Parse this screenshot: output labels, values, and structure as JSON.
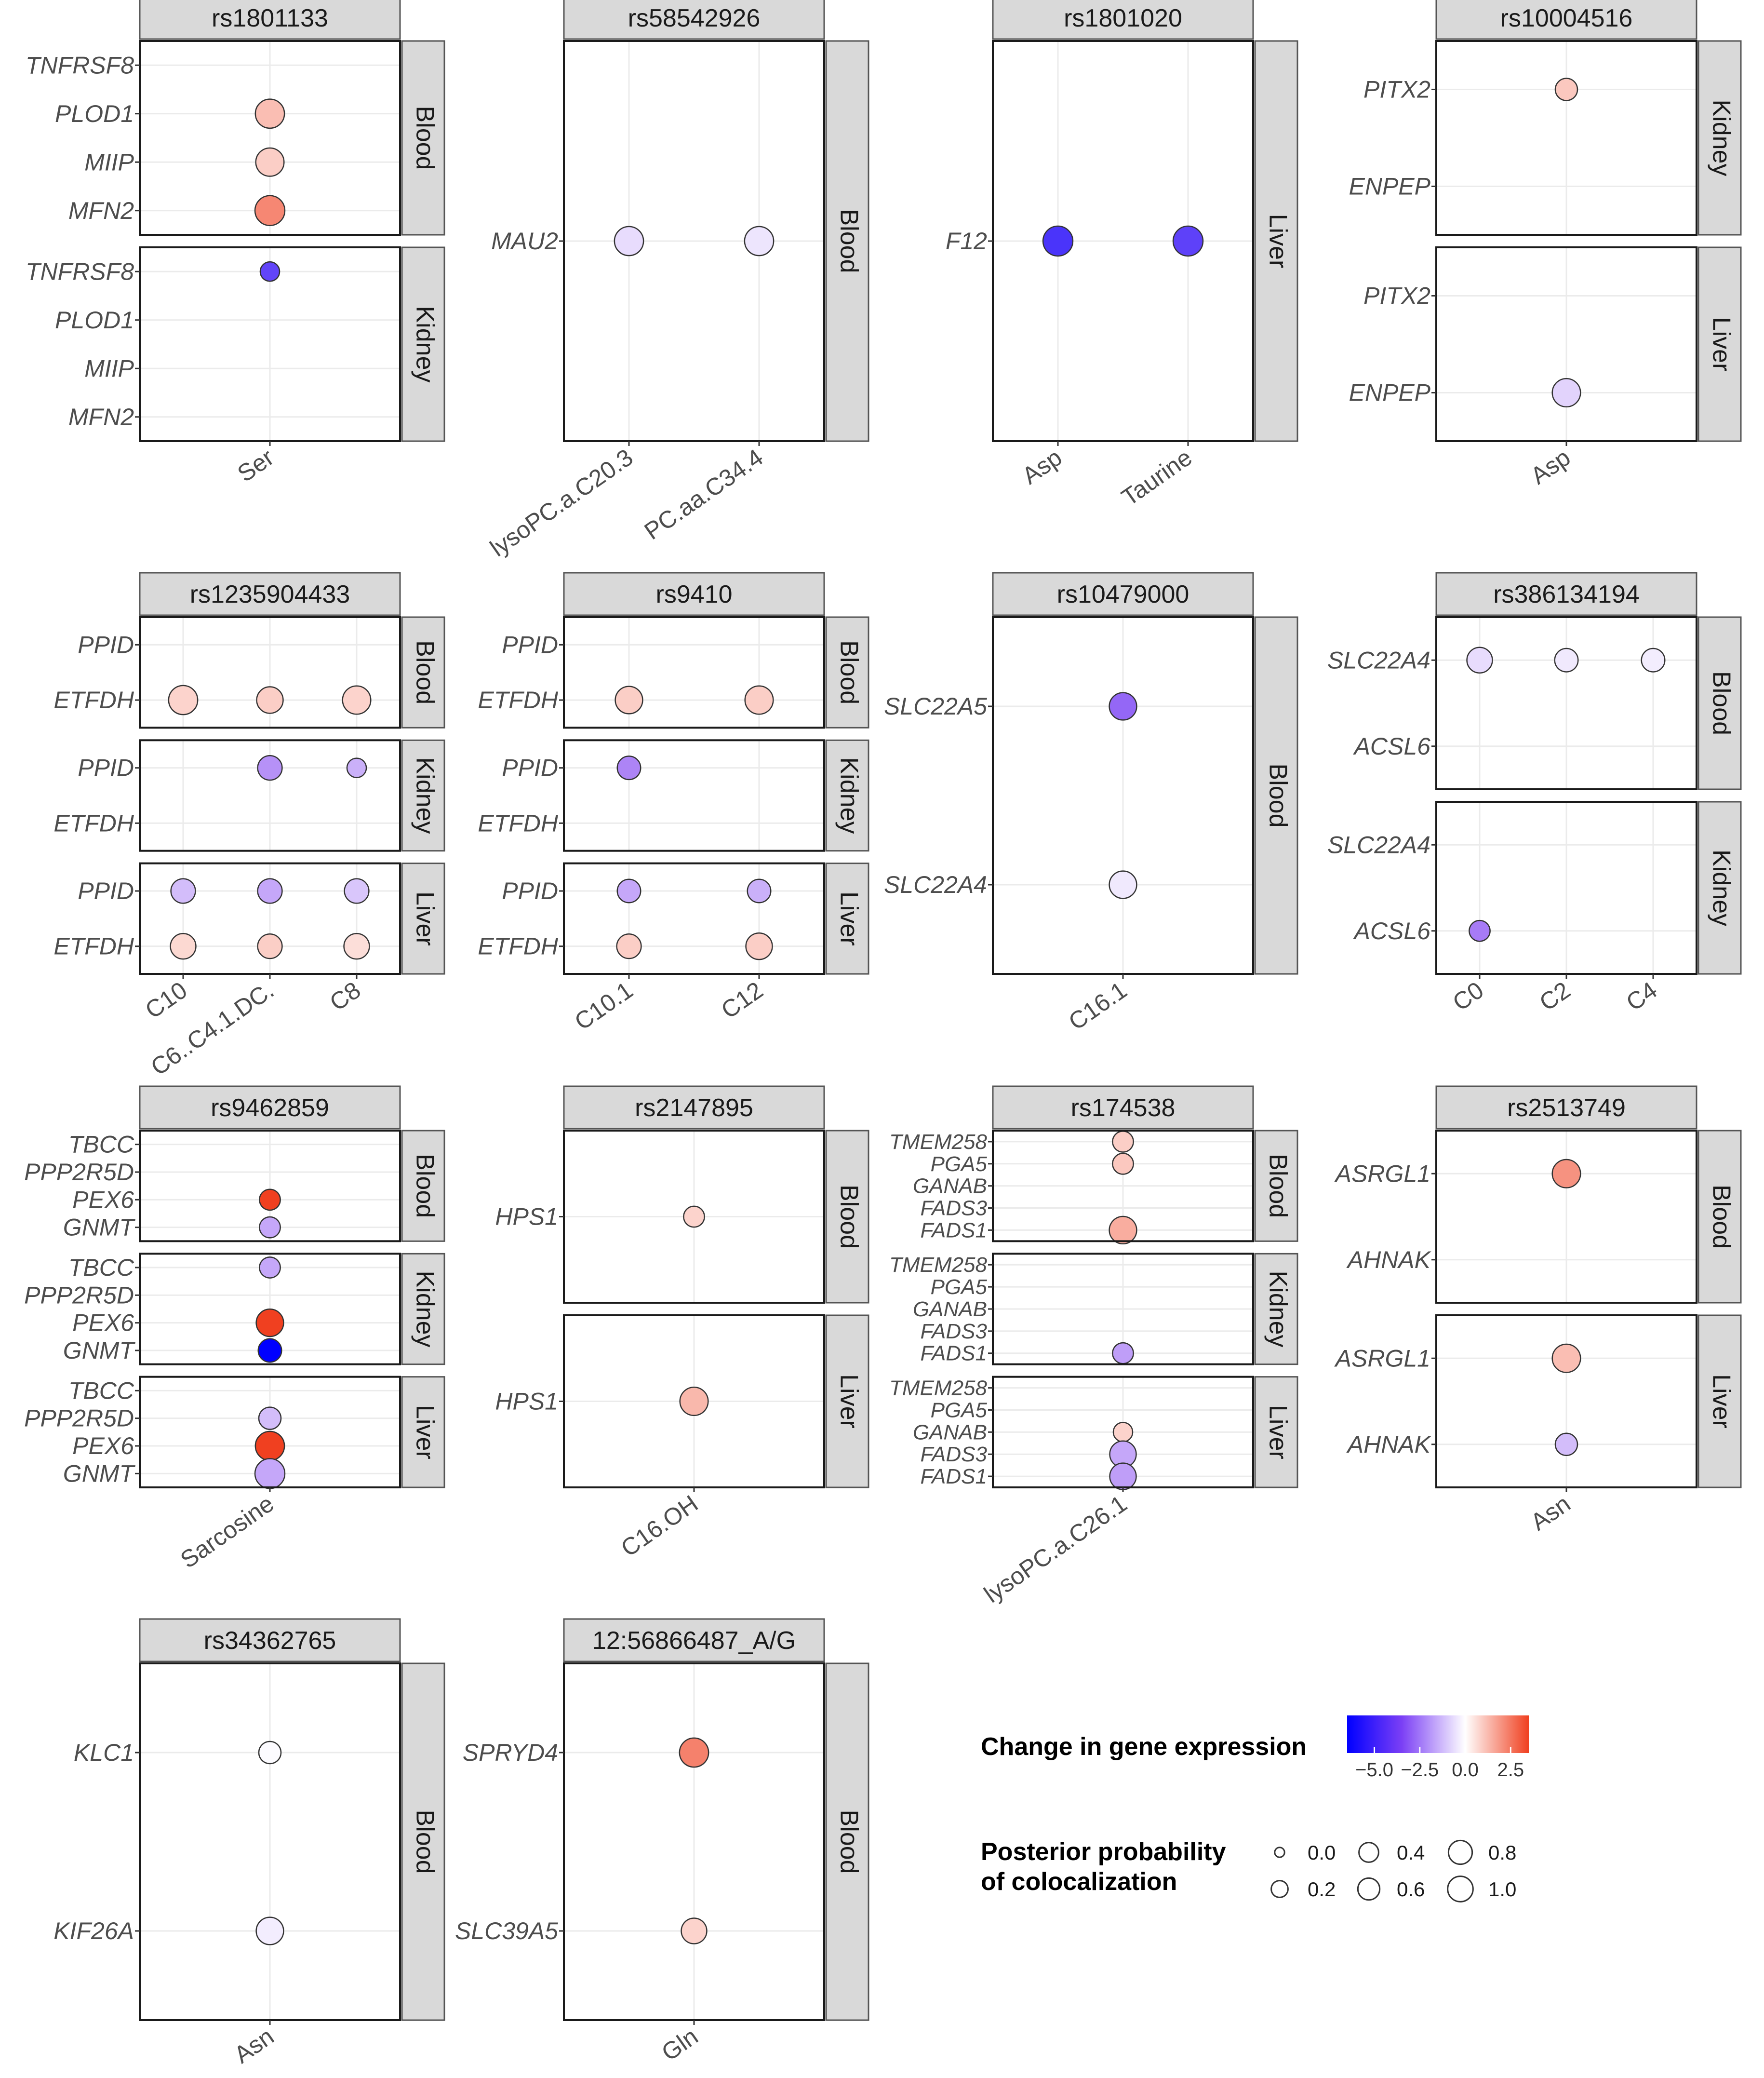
{
  "figure": {
    "colors": {
      "low": "#0000ff",
      "mid": "#ffffff",
      "high": "#f04020",
      "strip_fill": "#d9d9d9",
      "strip_border": "#555555",
      "grid": "#ebebeb",
      "axis_text": "#4d4d4d"
    },
    "facet_orientation": "snp columns with tissue rows"
  },
  "chart_data": [
    {
      "type": "scatter",
      "snp": "rs1801133",
      "x_categories": [
        "Ser"
      ],
      "panels": [
        {
          "tissue": "Blood",
          "genes": [
            "TNFRSF8",
            "PLOD1",
            "MIIP",
            "MFN2"
          ],
          "points": [
            {
              "x": "Ser",
              "gene": "PLOD1",
              "expression": 1.2,
              "pp": 0.6
            },
            {
              "x": "Ser",
              "gene": "MIIP",
              "expression": 0.9,
              "pp": 0.55
            },
            {
              "x": "Ser",
              "gene": "MFN2",
              "expression": 2.2,
              "pp": 0.65
            }
          ]
        },
        {
          "tissue": "Kidney",
          "genes": [
            "TNFRSF8",
            "PLOD1",
            "MIIP",
            "MFN2"
          ],
          "points": [
            {
              "x": "Ser",
              "gene": "TNFRSF8",
              "expression": -4.5,
              "pp": 0.15
            }
          ]
        }
      ]
    },
    {
      "type": "scatter",
      "snp": "rs58542926",
      "x_categories": [
        "lysoPC.a.C20.3",
        "PC.aa.C34.4"
      ],
      "panels": [
        {
          "tissue": "Blood",
          "genes": [
            "MAU2"
          ],
          "points": [
            {
              "x": "lysoPC.a.C20.3",
              "gene": "MAU2",
              "expression": -0.8,
              "pp": 0.6
            },
            {
              "x": "PC.aa.C34.4",
              "gene": "MAU2",
              "expression": -0.6,
              "pp": 0.6
            }
          ]
        }
      ]
    },
    {
      "type": "scatter",
      "snp": "rs1801020",
      "x_categories": [
        "Asp",
        "Taurine"
      ],
      "panels": [
        {
          "tissue": "Liver",
          "genes": [
            "F12"
          ],
          "points": [
            {
              "x": "Asp",
              "gene": "F12",
              "expression": -5.0,
              "pp": 0.65
            },
            {
              "x": "Taurine",
              "gene": "F12",
              "expression": -4.6,
              "pp": 0.65
            }
          ]
        }
      ]
    },
    {
      "type": "scatter",
      "snp": "rs10004516",
      "x_categories": [
        "Asp"
      ],
      "panels": [
        {
          "tissue": "Kidney",
          "genes": [
            "PITX2",
            "ENPEP"
          ],
          "points": [
            {
              "x": "Asp",
              "gene": "PITX2",
              "expression": 1.0,
              "pp": 0.25
            }
          ]
        },
        {
          "tissue": "Liver",
          "genes": [
            "PITX2",
            "ENPEP"
          ],
          "points": [
            {
              "x": "Asp",
              "gene": "ENPEP",
              "expression": -1.0,
              "pp": 0.55
            }
          ]
        }
      ]
    },
    {
      "type": "scatter",
      "snp": "rs1235904433",
      "x_categories": [
        "C10",
        "C6..C4.1.DC.",
        "C8"
      ],
      "panels": [
        {
          "tissue": "Blood",
          "genes": [
            "PPID",
            "ETFDH"
          ],
          "points": [
            {
              "x": "C10",
              "gene": "ETFDH",
              "expression": 0.8,
              "pp": 0.6
            },
            {
              "x": "C6..C4.1.DC.",
              "gene": "ETFDH",
              "expression": 0.9,
              "pp": 0.45
            },
            {
              "x": "C8",
              "gene": "ETFDH",
              "expression": 0.8,
              "pp": 0.55
            }
          ]
        },
        {
          "tissue": "Kidney",
          "genes": [
            "PPID",
            "ETFDH"
          ],
          "points": [
            {
              "x": "C6..C4.1.DC.",
              "gene": "PPID",
              "expression": -2.5,
              "pp": 0.35
            },
            {
              "x": "C8",
              "gene": "PPID",
              "expression": -1.8,
              "pp": 0.15
            }
          ]
        },
        {
          "tissue": "Liver",
          "genes": [
            "PPID",
            "ETFDH"
          ],
          "points": [
            {
              "x": "C10",
              "gene": "PPID",
              "expression": -1.5,
              "pp": 0.35
            },
            {
              "x": "C6..C4.1.DC.",
              "gene": "PPID",
              "expression": -2.0,
              "pp": 0.35
            },
            {
              "x": "C8",
              "gene": "PPID",
              "expression": -1.3,
              "pp": 0.35
            },
            {
              "x": "C10",
              "gene": "ETFDH",
              "expression": 0.7,
              "pp": 0.4
            },
            {
              "x": "C6..C4.1.DC.",
              "gene": "ETFDH",
              "expression": 0.9,
              "pp": 0.35
            },
            {
              "x": "C8",
              "gene": "ETFDH",
              "expression": 0.6,
              "pp": 0.4
            }
          ]
        }
      ]
    },
    {
      "type": "scatter",
      "snp": "rs9410",
      "x_categories": [
        "C10.1",
        "C12"
      ],
      "panels": [
        {
          "tissue": "Blood",
          "genes": [
            "PPID",
            "ETFDH"
          ],
          "points": [
            {
              "x": "C10.1",
              "gene": "ETFDH",
              "expression": 0.9,
              "pp": 0.5
            },
            {
              "x": "C12",
              "gene": "ETFDH",
              "expression": 0.9,
              "pp": 0.55
            }
          ]
        },
        {
          "tissue": "Kidney",
          "genes": [
            "PPID",
            "ETFDH"
          ],
          "points": [
            {
              "x": "C10.1",
              "gene": "PPID",
              "expression": -2.8,
              "pp": 0.3
            }
          ]
        },
        {
          "tissue": "Liver",
          "genes": [
            "PPID",
            "ETFDH"
          ],
          "points": [
            {
              "x": "C10.1",
              "gene": "PPID",
              "expression": -2.0,
              "pp": 0.3
            },
            {
              "x": "C12",
              "gene": "PPID",
              "expression": -1.8,
              "pp": 0.3
            },
            {
              "x": "C10.1",
              "gene": "ETFDH",
              "expression": 0.9,
              "pp": 0.35
            },
            {
              "x": "C12",
              "gene": "ETFDH",
              "expression": 0.9,
              "pp": 0.45
            }
          ]
        }
      ]
    },
    {
      "type": "scatter",
      "snp": "rs10479000",
      "x_categories": [
        "C16.1"
      ],
      "panels": [
        {
          "tissue": "Blood",
          "genes": [
            "SLC22A5",
            "SLC22A4"
          ],
          "points": [
            {
              "x": "C16.1",
              "gene": "SLC22A5",
              "expression": -3.5,
              "pp": 0.5
            },
            {
              "x": "C16.1",
              "gene": "SLC22A4",
              "expression": -0.5,
              "pp": 0.5
            }
          ]
        }
      ]
    },
    {
      "type": "scatter",
      "snp": "rs386134194",
      "x_categories": [
        "C0",
        "C2",
        "C4"
      ],
      "panels": [
        {
          "tissue": "Blood",
          "genes": [
            "SLC22A4",
            "ACSL6"
          ],
          "points": [
            {
              "x": "C0",
              "gene": "SLC22A4",
              "expression": -0.8,
              "pp": 0.4
            },
            {
              "x": "C2",
              "gene": "SLC22A4",
              "expression": -0.5,
              "pp": 0.3
            },
            {
              "x": "C4",
              "gene": "SLC22A4",
              "expression": -0.4,
              "pp": 0.3
            }
          ]
        },
        {
          "tissue": "Kidney",
          "genes": [
            "SLC22A4",
            "ACSL6"
          ],
          "points": [
            {
              "x": "C0",
              "gene": "ACSL6",
              "expression": -3.0,
              "pp": 0.2
            }
          ]
        }
      ]
    },
    {
      "type": "scatter",
      "snp": "rs9462859",
      "x_categories": [
        "Sarcosine"
      ],
      "panels": [
        {
          "tissue": "Blood",
          "genes": [
            "TBCC",
            "PPP2R5D",
            "PEX6",
            "GNMT"
          ],
          "points": [
            {
              "x": "Sarcosine",
              "gene": "PEX6",
              "expression": 5.5,
              "pp": 0.2
            },
            {
              "x": "Sarcosine",
              "gene": "GNMT",
              "expression": -2.0,
              "pp": 0.2
            }
          ]
        },
        {
          "tissue": "Kidney",
          "genes": [
            "TBCC",
            "PPP2R5D",
            "PEX6",
            "GNMT"
          ],
          "points": [
            {
              "x": "Sarcosine",
              "gene": "TBCC",
              "expression": -2.0,
              "pp": 0.2
            },
            {
              "x": "Sarcosine",
              "gene": "PEX6",
              "expression": 4.5,
              "pp": 0.5
            },
            {
              "x": "Sarcosine",
              "gene": "GNMT",
              "expression": -8.0,
              "pp": 0.3
            }
          ]
        },
        {
          "tissue": "Liver",
          "genes": [
            "TBCC",
            "PPP2R5D",
            "PEX6",
            "GNMT"
          ],
          "points": [
            {
              "x": "Sarcosine",
              "gene": "PPP2R5D",
              "expression": -1.5,
              "pp": 0.25
            },
            {
              "x": "Sarcosine",
              "gene": "PEX6",
              "expression": 5.0,
              "pp": 0.6
            },
            {
              "x": "Sarcosine",
              "gene": "GNMT",
              "expression": -2.0,
              "pp": 0.65
            }
          ]
        }
      ]
    },
    {
      "type": "scatter",
      "snp": "rs2147895",
      "x_categories": [
        "C16.OH"
      ],
      "panels": [
        {
          "tissue": "Blood",
          "genes": [
            "HPS1"
          ],
          "points": [
            {
              "x": "C16.OH",
              "gene": "HPS1",
              "expression": 0.8,
              "pp": 0.2
            }
          ]
        },
        {
          "tissue": "Liver",
          "genes": [
            "HPS1"
          ],
          "points": [
            {
              "x": "C16.OH",
              "gene": "HPS1",
              "expression": 1.3,
              "pp": 0.55
            }
          ]
        }
      ]
    },
    {
      "type": "scatter",
      "snp": "rs174538",
      "x_categories": [
        "lysoPC.a.C26.1"
      ],
      "panels": [
        {
          "tissue": "Blood",
          "genes": [
            "TMEM258",
            "PGA5",
            "GANAB",
            "FADS3",
            "FADS1"
          ],
          "points": [
            {
              "x": "lysoPC.a.C26.1",
              "gene": "TMEM258",
              "expression": 0.9,
              "pp": 0.2
            },
            {
              "x": "lysoPC.a.C26.1",
              "gene": "PGA5",
              "expression": 1.0,
              "pp": 0.2
            },
            {
              "x": "lysoPC.a.C26.1",
              "gene": "FADS1",
              "expression": 1.5,
              "pp": 0.5
            }
          ]
        },
        {
          "tissue": "Kidney",
          "genes": [
            "TMEM258",
            "PGA5",
            "GANAB",
            "FADS3",
            "FADS1"
          ],
          "points": [
            {
              "x": "lysoPC.a.C26.1",
              "gene": "FADS1",
              "expression": -2.2,
              "pp": 0.2
            }
          ]
        },
        {
          "tissue": "Liver",
          "genes": [
            "TMEM258",
            "PGA5",
            "GANAB",
            "FADS3",
            "FADS1"
          ],
          "points": [
            {
              "x": "lysoPC.a.C26.1",
              "gene": "GANAB",
              "expression": 0.8,
              "pp": 0.15
            },
            {
              "x": "lysoPC.a.C26.1",
              "gene": "FADS3",
              "expression": -2.0,
              "pp": 0.45
            },
            {
              "x": "lysoPC.a.C26.1",
              "gene": "FADS1",
              "expression": -2.2,
              "pp": 0.45
            }
          ]
        }
      ]
    },
    {
      "type": "scatter",
      "snp": "rs2513749",
      "x_categories": [
        "Asn"
      ],
      "panels": [
        {
          "tissue": "Blood",
          "genes": [
            "ASRGL1",
            "AHNAK"
          ],
          "points": [
            {
              "x": "Asn",
              "gene": "ASRGL1",
              "expression": 2.0,
              "pp": 0.55
            }
          ]
        },
        {
          "tissue": "Liver",
          "genes": [
            "ASRGL1",
            "AHNAK"
          ],
          "points": [
            {
              "x": "Asn",
              "gene": "ASRGL1",
              "expression": 1.2,
              "pp": 0.55
            },
            {
              "x": "Asn",
              "gene": "AHNAK",
              "expression": -1.5,
              "pp": 0.25
            }
          ]
        }
      ]
    },
    {
      "type": "scatter",
      "snp": "rs34362765",
      "x_categories": [
        "Asn"
      ],
      "panels": [
        {
          "tissue": "Blood",
          "genes": [
            "KLC1",
            "KIF26A"
          ],
          "points": [
            {
              "x": "Asn",
              "gene": "KLC1",
              "expression": -0.1,
              "pp": 0.25
            },
            {
              "x": "Asn",
              "gene": "KIF26A",
              "expression": -0.4,
              "pp": 0.5
            }
          ]
        }
      ]
    },
    {
      "type": "scatter",
      "snp": "12:56866487_A/G",
      "x_categories": [
        "Gln"
      ],
      "panels": [
        {
          "tissue": "Blood",
          "genes": [
            "SPRYD4",
            "SLC39A5"
          ],
          "points": [
            {
              "x": "Gln",
              "gene": "SPRYD4",
              "expression": 2.3,
              "pp": 0.6
            },
            {
              "x": "Gln",
              "gene": "SLC39A5",
              "expression": 0.8,
              "pp": 0.4
            }
          ]
        }
      ]
    }
  ],
  "legend": {
    "color": {
      "title": "Change in gene expression",
      "ticks": [
        "−5.0",
        "−2.5",
        "0.0",
        "2.5"
      ],
      "tick_values": [
        -5.0,
        -2.5,
        0.0,
        2.5
      ],
      "range": [
        -6.5,
        3.5
      ]
    },
    "size": {
      "title_line1": "Posterior probability",
      "title_line2": "of colocalization",
      "entries": [
        {
          "label": "0.0",
          "value": 0.0
        },
        {
          "label": "0.2",
          "value": 0.2
        },
        {
          "label": "0.4",
          "value": 0.4
        },
        {
          "label": "0.6",
          "value": 0.6
        },
        {
          "label": "0.8",
          "value": 0.8
        },
        {
          "label": "1.0",
          "value": 1.0
        }
      ]
    }
  }
}
